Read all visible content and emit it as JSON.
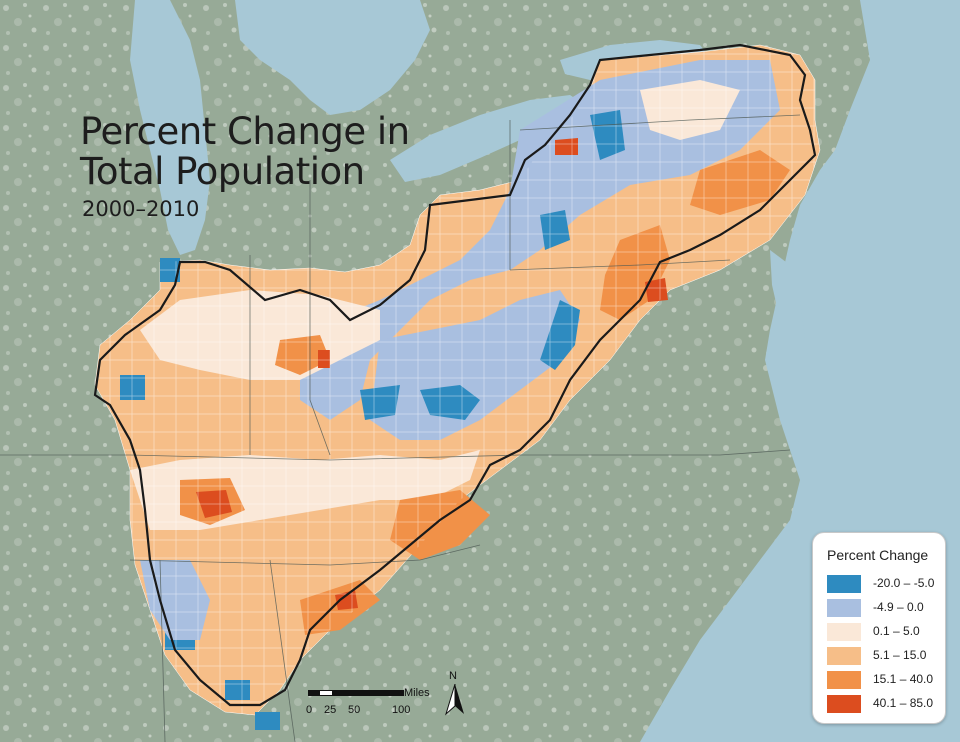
{
  "title": {
    "line1": "Percent Change in",
    "line2": "Total Population"
  },
  "subtitle": "2000–2010",
  "legend": {
    "title": "Percent Change",
    "classes": [
      {
        "label": "-20.0 – -5.0",
        "color": "#2e8bc0"
      },
      {
        "label": "-4.9 – 0.0",
        "color": "#a9bfe0"
      },
      {
        "label": "0.1 – 5.0",
        "color": "#fae8d8"
      },
      {
        "label": "5.1 – 15.0",
        "color": "#f6be88"
      },
      {
        "label": "15.1 – 40.0",
        "color": "#f19148"
      },
      {
        "label": "40.1 – 85.0",
        "color": "#dc4d1f"
      }
    ]
  },
  "scale_bar": {
    "unit": "Miles",
    "ticks": [
      "0",
      "25",
      "50",
      "100"
    ]
  },
  "north_arrow": {
    "label": "N",
    "icon": "north-arrow-icon"
  },
  "colors": {
    "water": "#a7c8d6",
    "land": "#95a896",
    "land_urban": "#d6dbd6",
    "boundary": "#1a1a1a"
  }
}
